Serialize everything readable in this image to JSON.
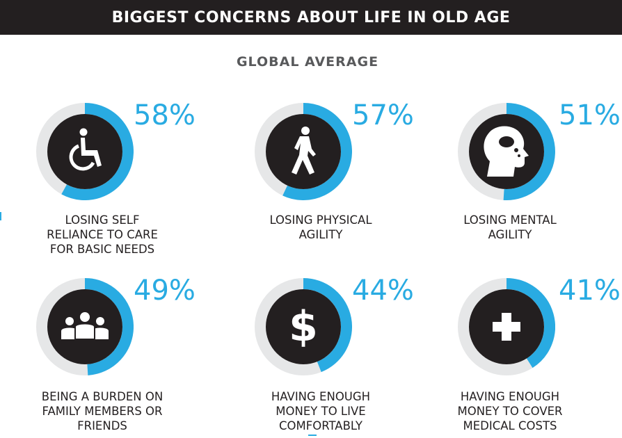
{
  "header": {
    "title": "BIGGEST CONCERNS ABOUT LIFE IN OLD AGE"
  },
  "subtitle": "GLOBAL AVERAGE",
  "colors": {
    "accent": "#29abe2",
    "track": "#e6e7e8",
    "dark": "#231f20"
  },
  "chart_data": {
    "type": "pie",
    "title": "BIGGEST CONCERNS ABOUT LIFE IN OLD AGE",
    "subtitle": "GLOBAL AVERAGE",
    "unit": "%",
    "items": [
      {
        "label": "LOSING SELF RELIANCE TO CARE FOR BASIC NEEDS",
        "lines": [
          "LOSING SELF",
          "RELIANCE TO CARE",
          "FOR BASIC NEEDS"
        ],
        "value": 58,
        "display": "58%",
        "icon": "wheelchair-icon"
      },
      {
        "label": "LOSING PHYSICAL AGILITY",
        "lines": [
          "LOSING PHYSICAL",
          "AGILITY"
        ],
        "value": 57,
        "display": "57%",
        "icon": "walking-person-icon"
      },
      {
        "label": "LOSING MENTAL AGILITY",
        "lines": [
          "LOSING MENTAL",
          "AGILITY"
        ],
        "value": 51,
        "display": "51%",
        "icon": "head-thought-icon"
      },
      {
        "label": "BEING A BURDEN ON FAMILY MEMBERS OR FRIENDS",
        "lines": [
          "BEING A BURDEN ON",
          "FAMILY MEMBERS OR",
          "FRIENDS"
        ],
        "value": 49,
        "display": "49%",
        "icon": "group-people-icon"
      },
      {
        "label": "HAVING ENOUGH MONEY TO LIVE COMFORTABLY",
        "lines": [
          "HAVING ENOUGH",
          "MONEY TO LIVE",
          "COMFORTABLY"
        ],
        "value": 44,
        "display": "44%",
        "icon": "dollar-sign-icon"
      },
      {
        "label": "HAVING ENOUGH MONEY TO COVER MEDICAL COSTS",
        "lines": [
          "HAVING ENOUGH",
          "MONEY TO COVER",
          "MEDICAL COSTS"
        ],
        "value": 41,
        "display": "41%",
        "icon": "medical-cross-icon"
      }
    ]
  }
}
